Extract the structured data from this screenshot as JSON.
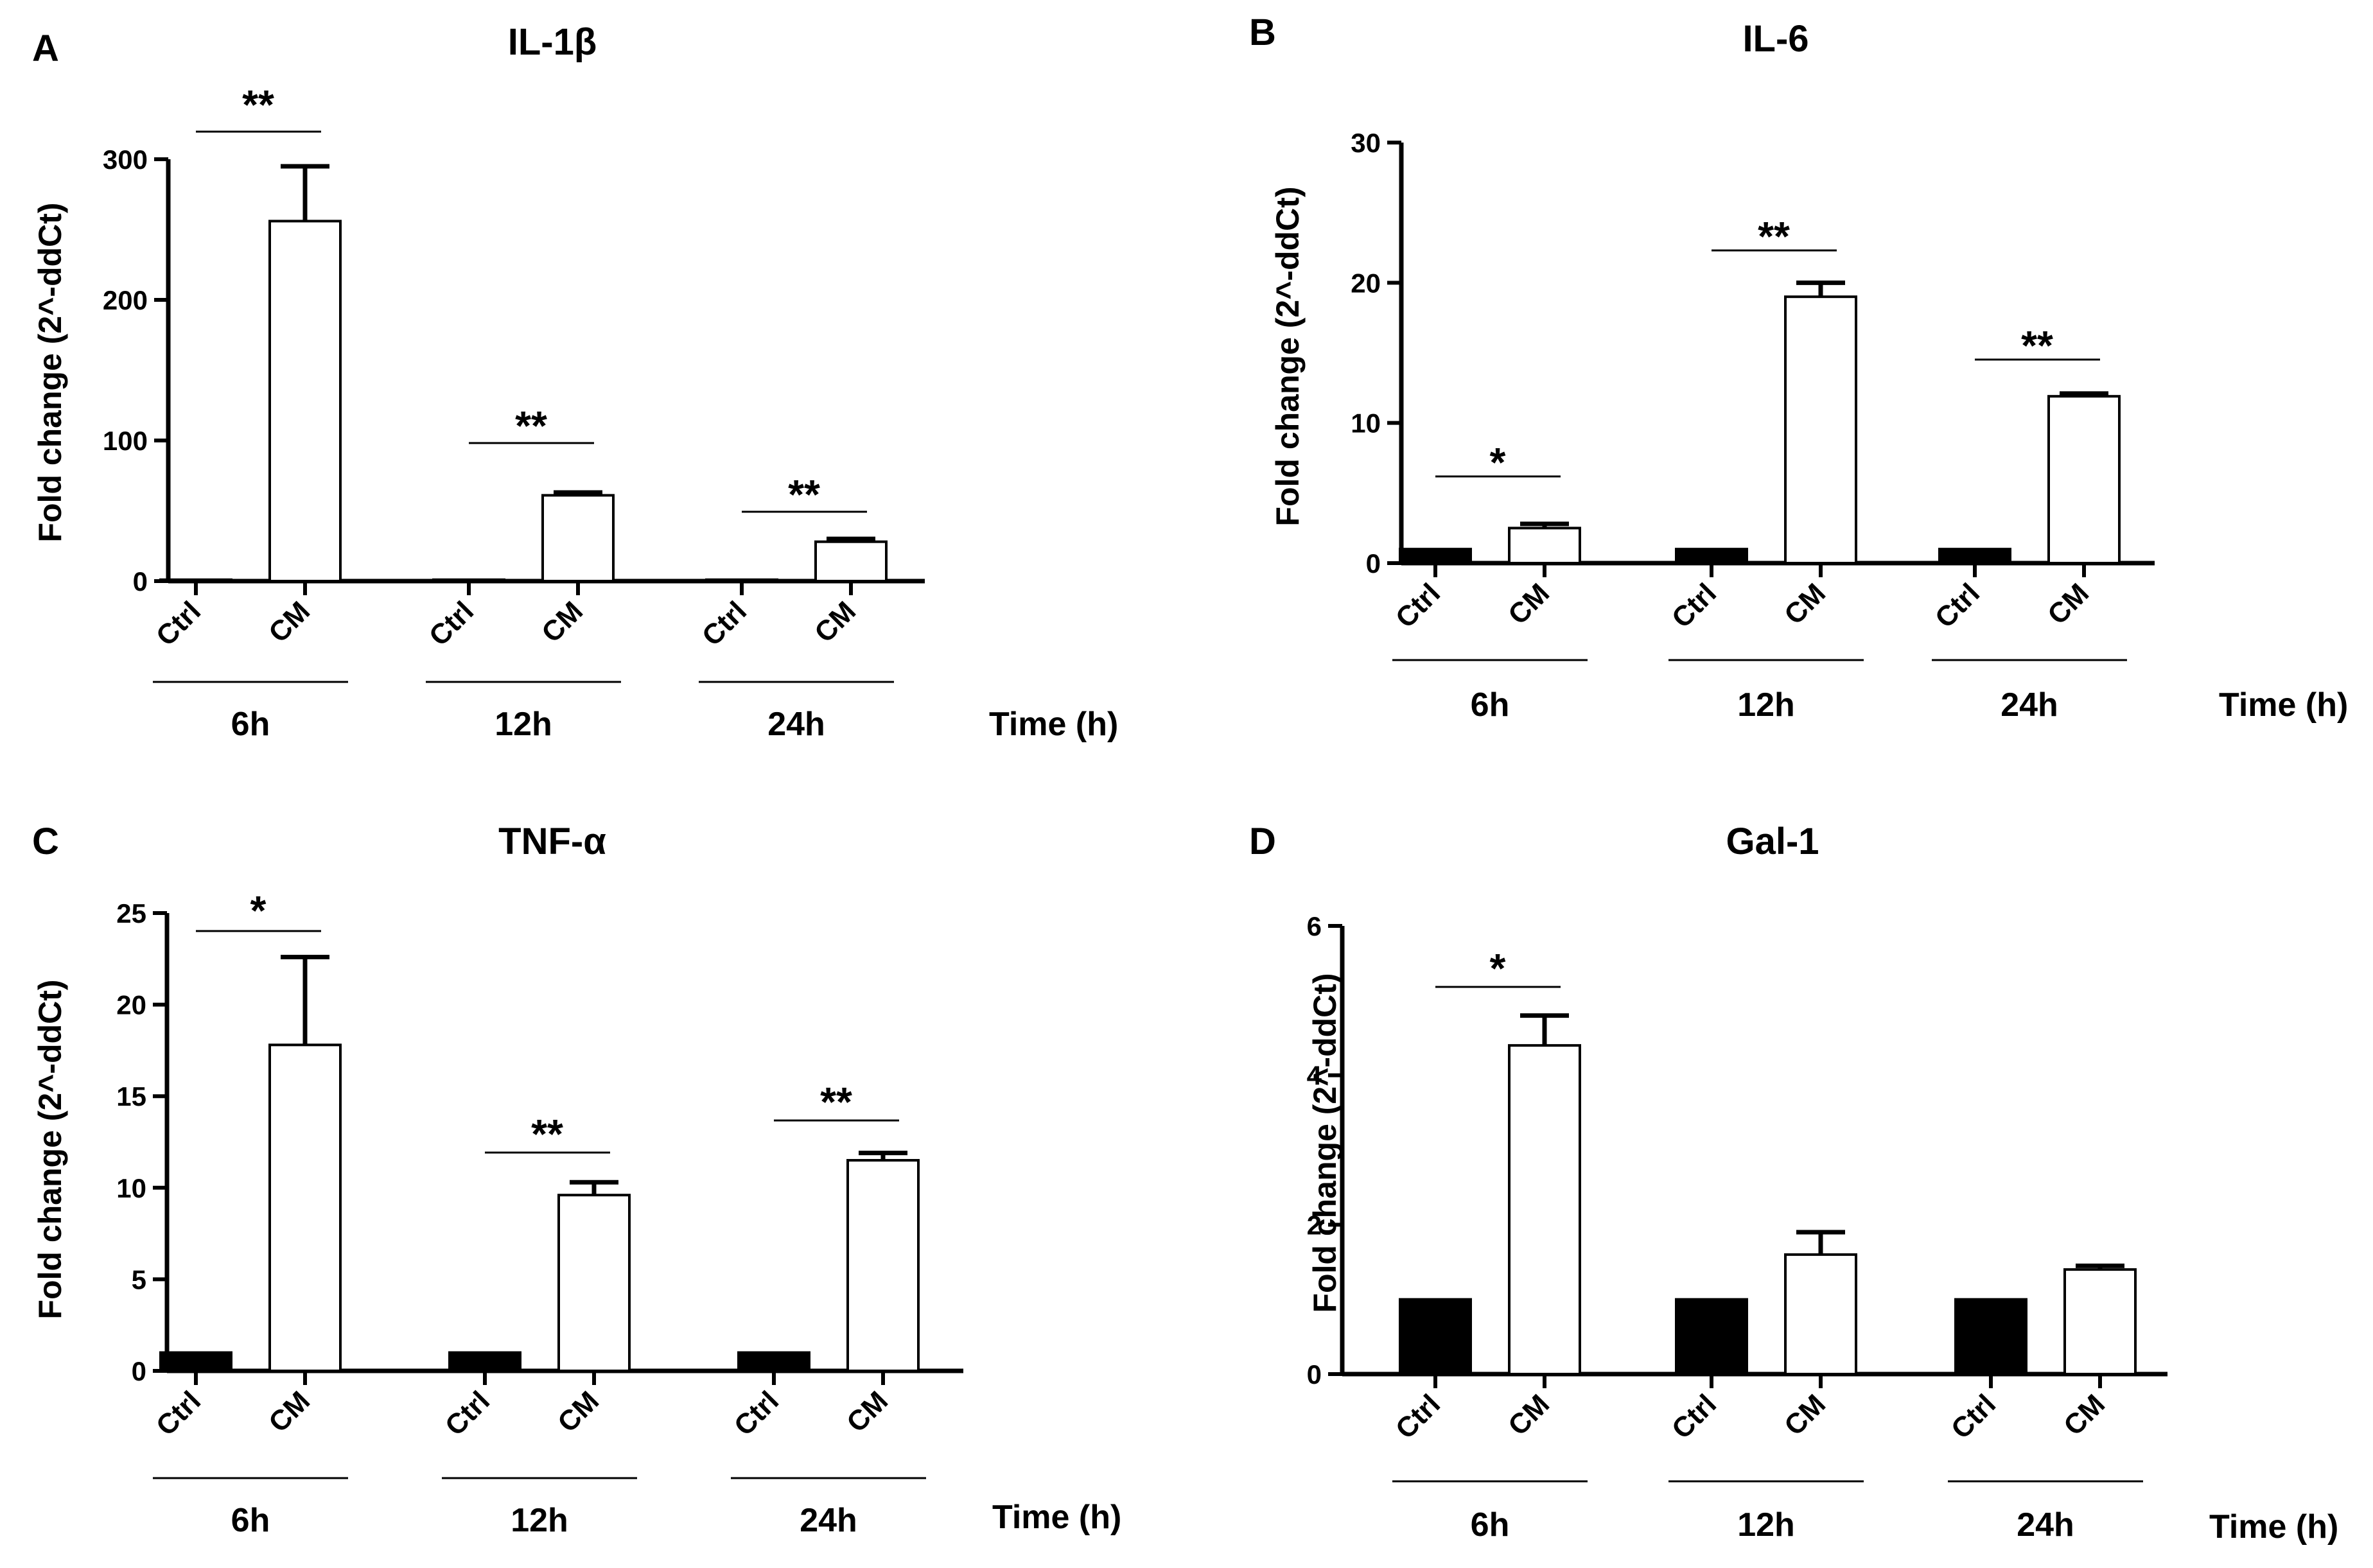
{
  "chart_data": [
    {
      "panel": "A",
      "type": "bar",
      "title": "IL-1β",
      "ylabel": "Fold change (2^-ddCt)",
      "ylim": [
        0,
        300
      ],
      "yticks": [
        0,
        100,
        200,
        300
      ],
      "x_group_title": "Time (h)",
      "groups": [
        {
          "label": "6h",
          "significance": "**",
          "bars": [
            {
              "category": "Ctrl",
              "value": 1,
              "error": 0,
              "fill": "#000000"
            },
            {
              "category": "CM",
              "value": 256,
              "error": 39,
              "fill": "#ffffff"
            }
          ]
        },
        {
          "label": "12h",
          "significance": "**",
          "bars": [
            {
              "category": "Ctrl",
              "value": 1,
              "error": 0,
              "fill": "#000000"
            },
            {
              "category": "CM",
              "value": 61,
              "error": 2,
              "fill": "#ffffff"
            }
          ]
        },
        {
          "label": "24h",
          "significance": "**",
          "bars": [
            {
              "category": "Ctrl",
              "value": 1,
              "error": 0,
              "fill": "#000000"
            },
            {
              "category": "CM",
              "value": 28,
              "error": 2,
              "fill": "#ffffff"
            }
          ]
        }
      ]
    },
    {
      "panel": "B",
      "type": "bar",
      "title": "IL-6",
      "ylabel": "Fold change (2^-ddCt)",
      "ylim": [
        0,
        30
      ],
      "yticks": [
        0,
        10,
        20,
        30
      ],
      "x_group_title": "Time (h)",
      "groups": [
        {
          "label": "6h",
          "significance": "*",
          "bars": [
            {
              "category": "Ctrl",
              "value": 1,
              "error": 0,
              "fill": "#000000"
            },
            {
              "category": "CM",
              "value": 2.5,
              "error": 0.3,
              "fill": "#ffffff"
            }
          ]
        },
        {
          "label": "12h",
          "significance": "**",
          "bars": [
            {
              "category": "Ctrl",
              "value": 1,
              "error": 0,
              "fill": "#000000"
            },
            {
              "category": "CM",
              "value": 19,
              "error": 1,
              "fill": "#ffffff"
            }
          ]
        },
        {
          "label": "24h",
          "significance": "**",
          "bars": [
            {
              "category": "Ctrl",
              "value": 1,
              "error": 0,
              "fill": "#000000"
            },
            {
              "category": "CM",
              "value": 11.9,
              "error": 0.2,
              "fill": "#ffffff"
            }
          ]
        }
      ]
    },
    {
      "panel": "C",
      "type": "bar",
      "title": "TNF-α",
      "ylabel": "Fold change (2^-ddCt)",
      "ylim": [
        0,
        25
      ],
      "yticks": [
        0,
        5,
        10,
        15,
        20,
        25
      ],
      "x_group_title": "Time (h)",
      "groups": [
        {
          "label": "6h",
          "significance": "*",
          "bars": [
            {
              "category": "Ctrl",
              "value": 1,
              "error": 0,
              "fill": "#000000"
            },
            {
              "category": "CM",
              "value": 17.8,
              "error": 4.8,
              "fill": "#ffffff"
            }
          ]
        },
        {
          "label": "12h",
          "significance": "**",
          "bars": [
            {
              "category": "Ctrl",
              "value": 1,
              "error": 0,
              "fill": "#000000"
            },
            {
              "category": "CM",
              "value": 9.6,
              "error": 0.7,
              "fill": "#ffffff"
            }
          ]
        },
        {
          "label": "24h",
          "significance": "**",
          "bars": [
            {
              "category": "Ctrl",
              "value": 1,
              "error": 0,
              "fill": "#000000"
            },
            {
              "category": "CM",
              "value": 11.5,
              "error": 0.4,
              "fill": "#ffffff"
            }
          ]
        }
      ]
    },
    {
      "panel": "D",
      "type": "bar",
      "title": "Gal-1",
      "ylabel": "Fold change (2^-ddCt)",
      "ylim": [
        0,
        6
      ],
      "yticks": [
        0,
        2,
        4,
        6
      ],
      "x_group_title": "Time (h)",
      "groups": [
        {
          "label": "6h",
          "significance": "*",
          "bars": [
            {
              "category": "Ctrl",
              "value": 1,
              "error": 0,
              "fill": "#000000"
            },
            {
              "category": "CM",
              "value": 4.4,
              "error": 0.4,
              "fill": "#ffffff"
            }
          ]
        },
        {
          "label": "12h",
          "significance": "",
          "bars": [
            {
              "category": "Ctrl",
              "value": 1,
              "error": 0,
              "fill": "#000000"
            },
            {
              "category": "CM",
              "value": 1.6,
              "error": 0.3,
              "fill": "#ffffff"
            }
          ]
        },
        {
          "label": "24h",
          "significance": "",
          "bars": [
            {
              "category": "Ctrl",
              "value": 1,
              "error": 0,
              "fill": "#000000"
            },
            {
              "category": "CM",
              "value": 1.4,
              "error": 0.05,
              "fill": "#ffffff"
            }
          ]
        }
      ]
    }
  ]
}
